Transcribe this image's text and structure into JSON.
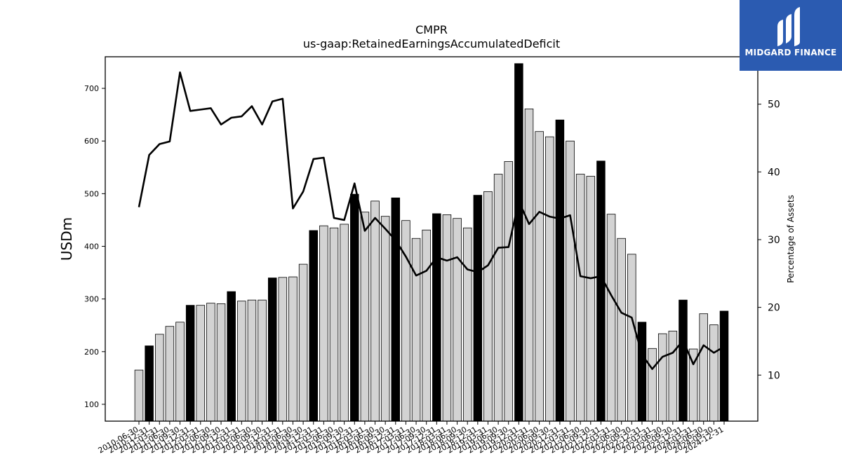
{
  "chart_data": {
    "type": "bar",
    "title": "CMPR",
    "subtitle": "us-gaap:RetainedEarningsAccumulatedDeficit",
    "ylabel": "USDm",
    "y2label": "Percentage of Assets",
    "ylim": [
      68,
      760
    ],
    "y2lim": [
      3.2,
      57.0
    ],
    "yticks": [
      100,
      200,
      300,
      400,
      500,
      600,
      700
    ],
    "y2ticks": [
      10,
      20,
      30,
      40,
      50
    ],
    "categories": [
      "2010-06-30",
      "2010-12-31",
      "2011-03-31",
      "2011-06-30",
      "2011-09-30",
      "2011-12-31",
      "2012-03-31",
      "2012-06-30",
      "2012-09-30",
      "2012-12-31",
      "2013-03-31",
      "2013-06-30",
      "2013-09-30",
      "2013-12-31",
      "2014-03-31",
      "2014-06-30",
      "2014-09-30",
      "2014-12-31",
      "2015-03-31",
      "2015-06-30",
      "2015-09-30",
      "2015-12-31",
      "2016-03-31",
      "2016-06-30",
      "2016-09-30",
      "2016-12-31",
      "2017-03-31",
      "2017-06-30",
      "2017-09-30",
      "2017-12-31",
      "2018-03-31",
      "2018-06-30",
      "2018-09-30",
      "2018-12-31",
      "2019-03-31",
      "2019-06-30",
      "2019-09-30",
      "2019-12-31",
      "2020-03-31",
      "2020-06-30",
      "2020-09-30",
      "2020-12-31",
      "2021-03-31",
      "2021-06-30",
      "2021-09-30",
      "2021-12-31",
      "2022-03-31",
      "2022-06-30",
      "2022-09-30",
      "2022-12-31",
      "2023-03-31",
      "2023-06-30",
      "2023-09-30",
      "2023-12-31",
      "2024-03-31",
      "2024-06-30",
      "2024-09-30",
      "2024-12-31"
    ],
    "series": [
      {
        "type": "bar",
        "values": [
          165,
          211,
          233,
          248,
          256,
          288,
          288,
          292,
          291,
          314,
          296,
          298,
          298,
          340,
          341,
          342,
          366,
          430,
          439,
          435,
          442,
          499,
          465,
          486,
          457,
          492,
          449,
          415,
          431,
          462,
          460,
          453,
          435,
          497,
          504,
          537,
          561,
          747,
          661,
          618,
          608,
          640,
          600,
          537,
          533,
          562,
          461,
          415,
          385,
          256,
          206,
          234,
          239,
          298,
          205,
          272,
          251,
          277
        ],
        "highlight": [
          false,
          true,
          false,
          false,
          false,
          true,
          false,
          false,
          false,
          true,
          false,
          false,
          false,
          true,
          false,
          false,
          false,
          true,
          false,
          false,
          false,
          true,
          false,
          false,
          false,
          true,
          false,
          false,
          false,
          true,
          false,
          false,
          false,
          true,
          false,
          false,
          false,
          true,
          false,
          false,
          false,
          true,
          false,
          false,
          false,
          true,
          false,
          false,
          false,
          true,
          false,
          false,
          false,
          true,
          false,
          false,
          false,
          true
        ],
        "colors": {
          "normal": "#d3d3d3",
          "highlight": "#000000",
          "edge": "#000000"
        }
      },
      {
        "type": "line",
        "axis": "right",
        "color": "#000000",
        "values": [
          34.8,
          42.5,
          44.1,
          44.5,
          54.7,
          49.0,
          49.2,
          49.4,
          47.0,
          48.0,
          48.2,
          49.7,
          47.0,
          50.4,
          50.8,
          34.6,
          37.1,
          41.9,
          42.1,
          33.2,
          32.9,
          38.3,
          31.3,
          33.2,
          31.6,
          29.9,
          27.5,
          24.7,
          25.4,
          27.4,
          26.9,
          27.4,
          25.6,
          25.2,
          26.2,
          28.8,
          28.9,
          35.7,
          32.3,
          34.1,
          33.4,
          33.1,
          33.6,
          24.6,
          24.3,
          24.6,
          21.8,
          19.2,
          18.5,
          13.0,
          10.9,
          12.7,
          13.3,
          15.1,
          11.6,
          14.4,
          13.3,
          14.2
        ]
      }
    ],
    "grid": false,
    "legend": "none"
  },
  "logo": {
    "text": "MIDGARD FINANCE"
  }
}
